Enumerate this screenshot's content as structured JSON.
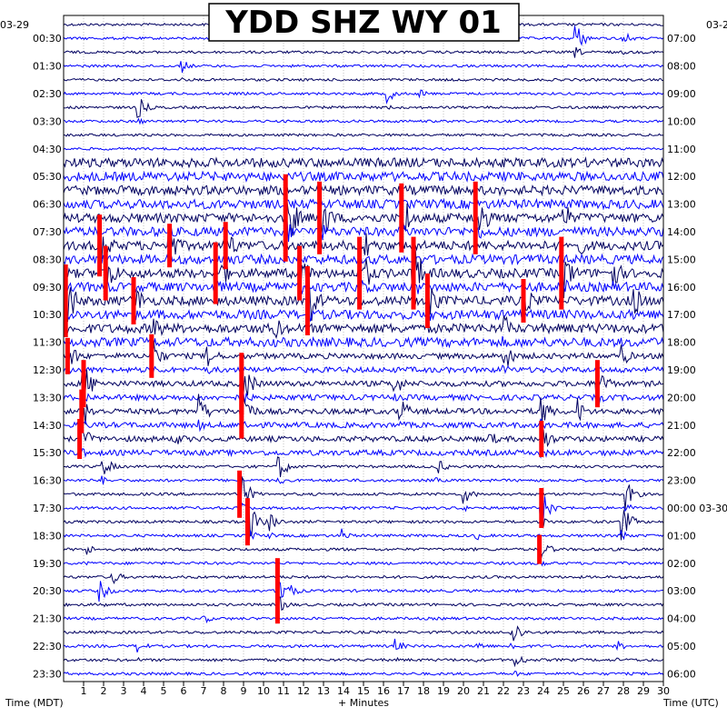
{
  "chart_data": {
    "type": "line",
    "title": "YDD SHZ WY 01",
    "xlabel": "+ Minutes",
    "left_axis_label": "Time (MDT)",
    "right_axis_label": "Time (UTC)",
    "left_date": "03-29",
    "right_date": "03-2",
    "x_ticks": [
      "1",
      "2",
      "3",
      "4",
      "5",
      "6",
      "7",
      "8",
      "9",
      "10",
      "11",
      "12",
      "13",
      "14",
      "15",
      "16",
      "17",
      "18",
      "19",
      "20",
      "21",
      "22",
      "23",
      "24",
      "25",
      "26",
      "27",
      "28",
      "29",
      "30"
    ],
    "x_range": [
      0,
      30
    ],
    "rows": 48,
    "row_minutes": 30,
    "left_labels": [
      "00:30",
      "01:30",
      "02:30",
      "03:30",
      "04:30",
      "05:30",
      "06:30",
      "07:30",
      "08:30",
      "09:30",
      "10:30",
      "11:30",
      "12:30",
      "13:30",
      "14:30",
      "15:30",
      "16:30",
      "17:30",
      "18:30",
      "19:30",
      "20:30",
      "21:30",
      "22:30",
      "23:30"
    ],
    "right_labels": [
      "07:00",
      "08:00",
      "09:00",
      "10:00",
      "11:00",
      "12:00",
      "13:00",
      "14:00",
      "15:00",
      "16:00",
      "17:00",
      "18:00",
      "19:00",
      "20:00",
      "21:00",
      "22:00",
      "23:00",
      "00:00 03-30",
      "01:00",
      "02:00",
      "03:00",
      "04:00",
      "05:00",
      "06:00"
    ],
    "trace_colors": [
      "#000060",
      "#0000ff"
    ],
    "clip_color": "#ff0000",
    "grid": "dotted-vertical-per-minute",
    "events": [
      {
        "row": 1,
        "minute": 25.6,
        "amp": 18
      },
      {
        "row": 1,
        "minute": 28.0,
        "amp": 8
      },
      {
        "row": 3,
        "minute": 5.9,
        "amp": 8
      },
      {
        "row": 5,
        "minute": 16.2,
        "amp": 10
      },
      {
        "row": 5,
        "minute": 17.8,
        "amp": 6
      },
      {
        "row": 6,
        "minute": 3.7,
        "amp": 14
      },
      {
        "row": 12,
        "minute": 13.2,
        "amp": 5
      },
      {
        "row": 14,
        "minute": 11.1,
        "amp": 48,
        "clip": true
      },
      {
        "row": 14,
        "minute": 12.8,
        "amp": 40,
        "clip": true
      },
      {
        "row": 14,
        "minute": 16.9,
        "amp": 38,
        "clip": true
      },
      {
        "row": 14,
        "minute": 20.6,
        "amp": 40,
        "clip": true
      },
      {
        "row": 14,
        "minute": 25.0,
        "amp": 20
      },
      {
        "row": 16,
        "minute": 1.8,
        "amp": 34,
        "clip": true
      },
      {
        "row": 16,
        "minute": 5.3,
        "amp": 24,
        "clip": true
      },
      {
        "row": 16,
        "minute": 8.1,
        "amp": 26,
        "clip": true
      },
      {
        "row": 16,
        "minute": 15.1,
        "amp": 18
      },
      {
        "row": 16,
        "minute": 25.8,
        "amp": 12
      },
      {
        "row": 18,
        "minute": 2.1,
        "amp": 30,
        "clip": true
      },
      {
        "row": 18,
        "minute": 7.6,
        "amp": 34,
        "clip": true
      },
      {
        "row": 18,
        "minute": 11.8,
        "amp": 30,
        "clip": true
      },
      {
        "row": 18,
        "minute": 14.8,
        "amp": 40,
        "clip": true
      },
      {
        "row": 18,
        "minute": 17.5,
        "amp": 40,
        "clip": true
      },
      {
        "row": 18,
        "minute": 24.9,
        "amp": 40,
        "clip": true
      },
      {
        "row": 18,
        "minute": 27.5,
        "amp": 20
      },
      {
        "row": 20,
        "minute": 0.1,
        "amp": 40,
        "clip": true
      },
      {
        "row": 20,
        "minute": 3.5,
        "amp": 26,
        "clip": true
      },
      {
        "row": 20,
        "minute": 12.2,
        "amp": 38,
        "clip": true
      },
      {
        "row": 20,
        "minute": 18.2,
        "amp": 30,
        "clip": true
      },
      {
        "row": 20,
        "minute": 23.0,
        "amp": 24,
        "clip": true
      },
      {
        "row": 20,
        "minute": 28.5,
        "amp": 22
      },
      {
        "row": 22,
        "minute": 4.5,
        "amp": 20
      },
      {
        "row": 22,
        "minute": 10.5,
        "amp": 18
      },
      {
        "row": 22,
        "minute": 22.0,
        "amp": 18
      },
      {
        "row": 24,
        "minute": 0.2,
        "amp": 20,
        "clip": true
      },
      {
        "row": 24,
        "minute": 4.4,
        "amp": 24,
        "clip": true
      },
      {
        "row": 24,
        "minute": 7.2,
        "amp": 16
      },
      {
        "row": 24,
        "minute": 22.0,
        "amp": 20
      },
      {
        "row": 24,
        "minute": 27.9,
        "amp": 14
      },
      {
        "row": 26,
        "minute": 1.0,
        "amp": 26,
        "clip": true
      },
      {
        "row": 26,
        "minute": 8.9,
        "amp": 34,
        "clip": true
      },
      {
        "row": 26,
        "minute": 16.5,
        "amp": 18
      },
      {
        "row": 26,
        "minute": 26.7,
        "amp": 26,
        "clip": true
      },
      {
        "row": 28,
        "minute": 0.9,
        "amp": 24,
        "clip": true
      },
      {
        "row": 28,
        "minute": 6.8,
        "amp": 18
      },
      {
        "row": 28,
        "minute": 8.9,
        "amp": 30,
        "clip": true
      },
      {
        "row": 28,
        "minute": 16.8,
        "amp": 18
      },
      {
        "row": 28,
        "minute": 23.9,
        "amp": 20
      },
      {
        "row": 28,
        "minute": 25.7,
        "amp": 16
      },
      {
        "row": 30,
        "minute": 0.8,
        "amp": 22,
        "clip": true
      },
      {
        "row": 30,
        "minute": 5.6,
        "amp": 10
      },
      {
        "row": 30,
        "minute": 21.3,
        "amp": 10
      },
      {
        "row": 30,
        "minute": 23.9,
        "amp": 20,
        "clip": true
      },
      {
        "row": 32,
        "minute": 1.9,
        "amp": 16
      },
      {
        "row": 32,
        "minute": 18.6,
        "amp": 12
      },
      {
        "row": 32,
        "minute": 10.7,
        "amp": 18
      },
      {
        "row": 34,
        "minute": 8.8,
        "amp": 26,
        "clip": true
      },
      {
        "row": 34,
        "minute": 20.0,
        "amp": 12
      },
      {
        "row": 34,
        "minute": 28.1,
        "amp": 18
      },
      {
        "row": 35,
        "minute": 23.9,
        "amp": 22,
        "clip": true
      },
      {
        "row": 36,
        "minute": 9.2,
        "amp": 26,
        "clip": true
      },
      {
        "row": 36,
        "minute": 27.9,
        "amp": 22
      },
      {
        "row": 36,
        "minute": 10.3,
        "amp": 12
      },
      {
        "row": 37,
        "minute": 13.9,
        "amp": 8
      },
      {
        "row": 37,
        "minute": 20.6,
        "amp": 6
      },
      {
        "row": 38,
        "minute": 1.1,
        "amp": 8
      },
      {
        "row": 38,
        "minute": 23.8,
        "amp": 16,
        "clip": true
      },
      {
        "row": 40,
        "minute": 2.4,
        "amp": 10
      },
      {
        "row": 41,
        "minute": 1.8,
        "amp": 12
      },
      {
        "row": 41,
        "minute": 10.7,
        "amp": 36,
        "clip": true
      },
      {
        "row": 43,
        "minute": 7.0,
        "amp": 6
      },
      {
        "row": 44,
        "minute": 22.4,
        "amp": 18
      },
      {
        "row": 45,
        "minute": 3.7,
        "amp": 8
      },
      {
        "row": 45,
        "minute": 16.6,
        "amp": 8
      },
      {
        "row": 45,
        "minute": 20.6,
        "amp": 8
      },
      {
        "row": 45,
        "minute": 27.6,
        "amp": 8
      },
      {
        "row": 46,
        "minute": 22.6,
        "amp": 10
      }
    ],
    "active_rows": [
      [
        10,
        24,
        5
      ],
      [
        24,
        32,
        3
      ],
      [
        32,
        48,
        1.5
      ]
    ],
    "base_noise": 1.4
  }
}
